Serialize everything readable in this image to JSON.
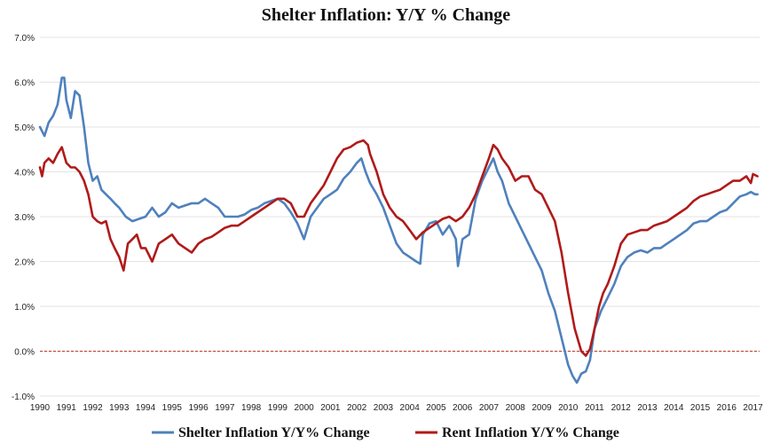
{
  "chart_data": {
    "type": "line",
    "title": "Shelter Inflation: Y/Y % Change",
    "xlabel": "",
    "ylabel": "",
    "xlim": [
      1990,
      2017.25
    ],
    "ylim": [
      -1.0,
      7.0
    ],
    "grid": true,
    "legend_position": "bottom-center",
    "y_ticks": [
      {
        "value": 7,
        "label": "7.0%"
      },
      {
        "value": 6,
        "label": "6.0%"
      },
      {
        "value": 5,
        "label": "5.0%"
      },
      {
        "value": 4,
        "label": "4.0%"
      },
      {
        "value": 3,
        "label": "3.0%"
      },
      {
        "value": 2,
        "label": "2.0%"
      },
      {
        "value": 1,
        "label": "1.0%"
      },
      {
        "value": 0,
        "label": "0.0%"
      },
      {
        "value": -1,
        "label": "-1.0%"
      }
    ],
    "x_ticks": [
      {
        "value": 1990,
        "label": "1990"
      },
      {
        "value": 1991,
        "label": "1991"
      },
      {
        "value": 1992,
        "label": "1992"
      },
      {
        "value": 1993,
        "label": "1993"
      },
      {
        "value": 1994,
        "label": "1994"
      },
      {
        "value": 1995,
        "label": "1995"
      },
      {
        "value": 1996,
        "label": "1996"
      },
      {
        "value": 1997,
        "label": "1997"
      },
      {
        "value": 1998,
        "label": "1998"
      },
      {
        "value": 1999,
        "label": "1999"
      },
      {
        "value": 2000,
        "label": "2000"
      },
      {
        "value": 2001,
        "label": "2001"
      },
      {
        "value": 2002,
        "label": "2002"
      },
      {
        "value": 2003,
        "label": "2003"
      },
      {
        "value": 2004,
        "label": "2004"
      },
      {
        "value": 2005,
        "label": "2005"
      },
      {
        "value": 2006,
        "label": "2006"
      },
      {
        "value": 2007,
        "label": "2007"
      },
      {
        "value": 2008,
        "label": "2008"
      },
      {
        "value": 2009,
        "label": "2009"
      },
      {
        "value": 2010,
        "label": "2010"
      },
      {
        "value": 2011,
        "label": "2011"
      },
      {
        "value": 2012,
        "label": "2012"
      },
      {
        "value": 2013,
        "label": "2013"
      },
      {
        "value": 2014,
        "label": "2014"
      },
      {
        "value": 2015,
        "label": "2015"
      },
      {
        "value": 2016,
        "label": "2016"
      },
      {
        "value": 2017,
        "label": "2017"
      }
    ],
    "reference_line": {
      "y": 0,
      "color": "#c0392b",
      "style": "dashed"
    },
    "series": [
      {
        "name": "Shelter Inflation Y/Y% Change",
        "color": "#4f81bd",
        "points": [
          [
            1990.0,
            5.0
          ],
          [
            1990.17,
            4.8
          ],
          [
            1990.33,
            5.1
          ],
          [
            1990.5,
            5.25
          ],
          [
            1990.67,
            5.5
          ],
          [
            1990.83,
            6.1
          ],
          [
            1990.92,
            6.1
          ],
          [
            1991.0,
            5.6
          ],
          [
            1991.17,
            5.2
          ],
          [
            1991.33,
            5.8
          ],
          [
            1991.5,
            5.7
          ],
          [
            1991.67,
            5.0
          ],
          [
            1991.83,
            4.2
          ],
          [
            1992.0,
            3.8
          ],
          [
            1992.17,
            3.9
          ],
          [
            1992.33,
            3.6
          ],
          [
            1992.5,
            3.5
          ],
          [
            1992.67,
            3.4
          ],
          [
            1992.83,
            3.3
          ],
          [
            1993.0,
            3.2
          ],
          [
            1993.25,
            3.0
          ],
          [
            1993.5,
            2.9
          ],
          [
            1993.75,
            2.95
          ],
          [
            1994.0,
            3.0
          ],
          [
            1994.25,
            3.2
          ],
          [
            1994.5,
            3.0
          ],
          [
            1994.75,
            3.1
          ],
          [
            1995.0,
            3.3
          ],
          [
            1995.25,
            3.2
          ],
          [
            1995.5,
            3.25
          ],
          [
            1995.75,
            3.3
          ],
          [
            1996.0,
            3.3
          ],
          [
            1996.25,
            3.4
          ],
          [
            1996.5,
            3.3
          ],
          [
            1996.75,
            3.2
          ],
          [
            1997.0,
            3.0
          ],
          [
            1997.25,
            3.0
          ],
          [
            1997.5,
            3.0
          ],
          [
            1997.75,
            3.05
          ],
          [
            1998.0,
            3.15
          ],
          [
            1998.25,
            3.2
          ],
          [
            1998.5,
            3.3
          ],
          [
            1998.75,
            3.35
          ],
          [
            1999.0,
            3.4
          ],
          [
            1999.25,
            3.3
          ],
          [
            1999.5,
            3.1
          ],
          [
            1999.75,
            2.85
          ],
          [
            2000.0,
            2.5
          ],
          [
            2000.25,
            3.0
          ],
          [
            2000.5,
            3.2
          ],
          [
            2000.75,
            3.4
          ],
          [
            2001.0,
            3.5
          ],
          [
            2001.25,
            3.6
          ],
          [
            2001.5,
            3.85
          ],
          [
            2001.75,
            4.0
          ],
          [
            2002.0,
            4.2
          ],
          [
            2002.17,
            4.3
          ],
          [
            2002.33,
            4.0
          ],
          [
            2002.5,
            3.75
          ],
          [
            2002.75,
            3.5
          ],
          [
            2003.0,
            3.2
          ],
          [
            2003.25,
            2.8
          ],
          [
            2003.5,
            2.4
          ],
          [
            2003.75,
            2.2
          ],
          [
            2004.0,
            2.1
          ],
          [
            2004.25,
            2.0
          ],
          [
            2004.4,
            1.95
          ],
          [
            2004.5,
            2.6
          ],
          [
            2004.75,
            2.85
          ],
          [
            2005.0,
            2.9
          ],
          [
            2005.25,
            2.6
          ],
          [
            2005.5,
            2.8
          ],
          [
            2005.75,
            2.5
          ],
          [
            2005.83,
            1.9
          ],
          [
            2006.0,
            2.5
          ],
          [
            2006.25,
            2.6
          ],
          [
            2006.5,
            3.4
          ],
          [
            2006.75,
            3.8
          ],
          [
            2007.0,
            4.1
          ],
          [
            2007.17,
            4.3
          ],
          [
            2007.33,
            4.0
          ],
          [
            2007.5,
            3.8
          ],
          [
            2007.75,
            3.3
          ],
          [
            2008.0,
            3.0
          ],
          [
            2008.25,
            2.7
          ],
          [
            2008.5,
            2.4
          ],
          [
            2008.75,
            2.1
          ],
          [
            2009.0,
            1.8
          ],
          [
            2009.25,
            1.3
          ],
          [
            2009.5,
            0.9
          ],
          [
            2009.75,
            0.3
          ],
          [
            2010.0,
            -0.3
          ],
          [
            2010.17,
            -0.55
          ],
          [
            2010.33,
            -0.7
          ],
          [
            2010.5,
            -0.5
          ],
          [
            2010.67,
            -0.45
          ],
          [
            2010.83,
            -0.2
          ],
          [
            2011.0,
            0.5
          ],
          [
            2011.25,
            0.9
          ],
          [
            2011.5,
            1.2
          ],
          [
            2011.75,
            1.5
          ],
          [
            2012.0,
            1.9
          ],
          [
            2012.25,
            2.1
          ],
          [
            2012.5,
            2.2
          ],
          [
            2012.75,
            2.25
          ],
          [
            2013.0,
            2.2
          ],
          [
            2013.25,
            2.3
          ],
          [
            2013.5,
            2.3
          ],
          [
            2013.75,
            2.4
          ],
          [
            2014.0,
            2.5
          ],
          [
            2014.25,
            2.6
          ],
          [
            2014.5,
            2.7
          ],
          [
            2014.75,
            2.85
          ],
          [
            2015.0,
            2.9
          ],
          [
            2015.25,
            2.9
          ],
          [
            2015.5,
            3.0
          ],
          [
            2015.75,
            3.1
          ],
          [
            2016.0,
            3.15
          ],
          [
            2016.25,
            3.3
          ],
          [
            2016.5,
            3.45
          ],
          [
            2016.75,
            3.5
          ],
          [
            2016.92,
            3.55
          ],
          [
            2017.08,
            3.5
          ],
          [
            2017.17,
            3.5
          ]
        ]
      },
      {
        "name": "Rent Inflation Y/Y% Change",
        "color": "#b01a1a",
        "points": [
          [
            1990.0,
            4.1
          ],
          [
            1990.08,
            3.9
          ],
          [
            1990.17,
            4.2
          ],
          [
            1990.33,
            4.3
          ],
          [
            1990.5,
            4.2
          ],
          [
            1990.67,
            4.4
          ],
          [
            1990.83,
            4.55
          ],
          [
            1991.0,
            4.2
          ],
          [
            1991.17,
            4.1
          ],
          [
            1991.33,
            4.1
          ],
          [
            1991.5,
            4.0
          ],
          [
            1991.67,
            3.8
          ],
          [
            1991.83,
            3.5
          ],
          [
            1992.0,
            3.0
          ],
          [
            1992.17,
            2.9
          ],
          [
            1992.33,
            2.85
          ],
          [
            1992.5,
            2.9
          ],
          [
            1992.67,
            2.5
          ],
          [
            1992.83,
            2.3
          ],
          [
            1993.0,
            2.1
          ],
          [
            1993.17,
            1.8
          ],
          [
            1993.33,
            2.4
          ],
          [
            1993.5,
            2.5
          ],
          [
            1993.67,
            2.6
          ],
          [
            1993.83,
            2.3
          ],
          [
            1994.0,
            2.3
          ],
          [
            1994.25,
            2.0
          ],
          [
            1994.5,
            2.4
          ],
          [
            1994.75,
            2.5
          ],
          [
            1995.0,
            2.6
          ],
          [
            1995.25,
            2.4
          ],
          [
            1995.5,
            2.3
          ],
          [
            1995.75,
            2.2
          ],
          [
            1996.0,
            2.4
          ],
          [
            1996.25,
            2.5
          ],
          [
            1996.5,
            2.55
          ],
          [
            1996.75,
            2.65
          ],
          [
            1997.0,
            2.75
          ],
          [
            1997.25,
            2.8
          ],
          [
            1997.5,
            2.8
          ],
          [
            1997.75,
            2.9
          ],
          [
            1998.0,
            3.0
          ],
          [
            1998.25,
            3.1
          ],
          [
            1998.5,
            3.2
          ],
          [
            1998.75,
            3.3
          ],
          [
            1999.0,
            3.4
          ],
          [
            1999.25,
            3.4
          ],
          [
            1999.5,
            3.3
          ],
          [
            1999.75,
            3.0
          ],
          [
            2000.0,
            3.0
          ],
          [
            2000.25,
            3.3
          ],
          [
            2000.5,
            3.5
          ],
          [
            2000.75,
            3.7
          ],
          [
            2001.0,
            4.0
          ],
          [
            2001.25,
            4.3
          ],
          [
            2001.5,
            4.5
          ],
          [
            2001.75,
            4.55
          ],
          [
            2002.0,
            4.65
          ],
          [
            2002.25,
            4.7
          ],
          [
            2002.42,
            4.6
          ],
          [
            2002.5,
            4.4
          ],
          [
            2002.75,
            4.0
          ],
          [
            2003.0,
            3.5
          ],
          [
            2003.25,
            3.2
          ],
          [
            2003.5,
            3.0
          ],
          [
            2003.75,
            2.9
          ],
          [
            2004.0,
            2.7
          ],
          [
            2004.25,
            2.5
          ],
          [
            2004.5,
            2.65
          ],
          [
            2004.75,
            2.75
          ],
          [
            2005.0,
            2.85
          ],
          [
            2005.25,
            2.95
          ],
          [
            2005.5,
            3.0
          ],
          [
            2005.75,
            2.9
          ],
          [
            2006.0,
            3.0
          ],
          [
            2006.25,
            3.2
          ],
          [
            2006.5,
            3.5
          ],
          [
            2006.75,
            3.9
          ],
          [
            2007.0,
            4.3
          ],
          [
            2007.17,
            4.6
          ],
          [
            2007.33,
            4.5
          ],
          [
            2007.5,
            4.3
          ],
          [
            2007.75,
            4.1
          ],
          [
            2008.0,
            3.8
          ],
          [
            2008.25,
            3.9
          ],
          [
            2008.5,
            3.9
          ],
          [
            2008.75,
            3.6
          ],
          [
            2009.0,
            3.5
          ],
          [
            2009.25,
            3.2
          ],
          [
            2009.5,
            2.9
          ],
          [
            2009.75,
            2.2
          ],
          [
            2010.0,
            1.3
          ],
          [
            2010.25,
            0.5
          ],
          [
            2010.5,
            0.0
          ],
          [
            2010.67,
            -0.1
          ],
          [
            2010.83,
            0.05
          ],
          [
            2011.0,
            0.5
          ],
          [
            2011.17,
            1.0
          ],
          [
            2011.33,
            1.3
          ],
          [
            2011.5,
            1.5
          ],
          [
            2011.75,
            1.9
          ],
          [
            2012.0,
            2.4
          ],
          [
            2012.25,
            2.6
          ],
          [
            2012.5,
            2.65
          ],
          [
            2012.75,
            2.7
          ],
          [
            2013.0,
            2.7
          ],
          [
            2013.25,
            2.8
          ],
          [
            2013.5,
            2.85
          ],
          [
            2013.75,
            2.9
          ],
          [
            2014.0,
            3.0
          ],
          [
            2014.25,
            3.1
          ],
          [
            2014.5,
            3.2
          ],
          [
            2014.75,
            3.35
          ],
          [
            2015.0,
            3.45
          ],
          [
            2015.25,
            3.5
          ],
          [
            2015.5,
            3.55
          ],
          [
            2015.75,
            3.6
          ],
          [
            2016.0,
            3.7
          ],
          [
            2016.25,
            3.8
          ],
          [
            2016.5,
            3.8
          ],
          [
            2016.75,
            3.9
          ],
          [
            2016.92,
            3.75
          ],
          [
            2017.0,
            3.95
          ],
          [
            2017.17,
            3.9
          ]
        ]
      }
    ]
  }
}
